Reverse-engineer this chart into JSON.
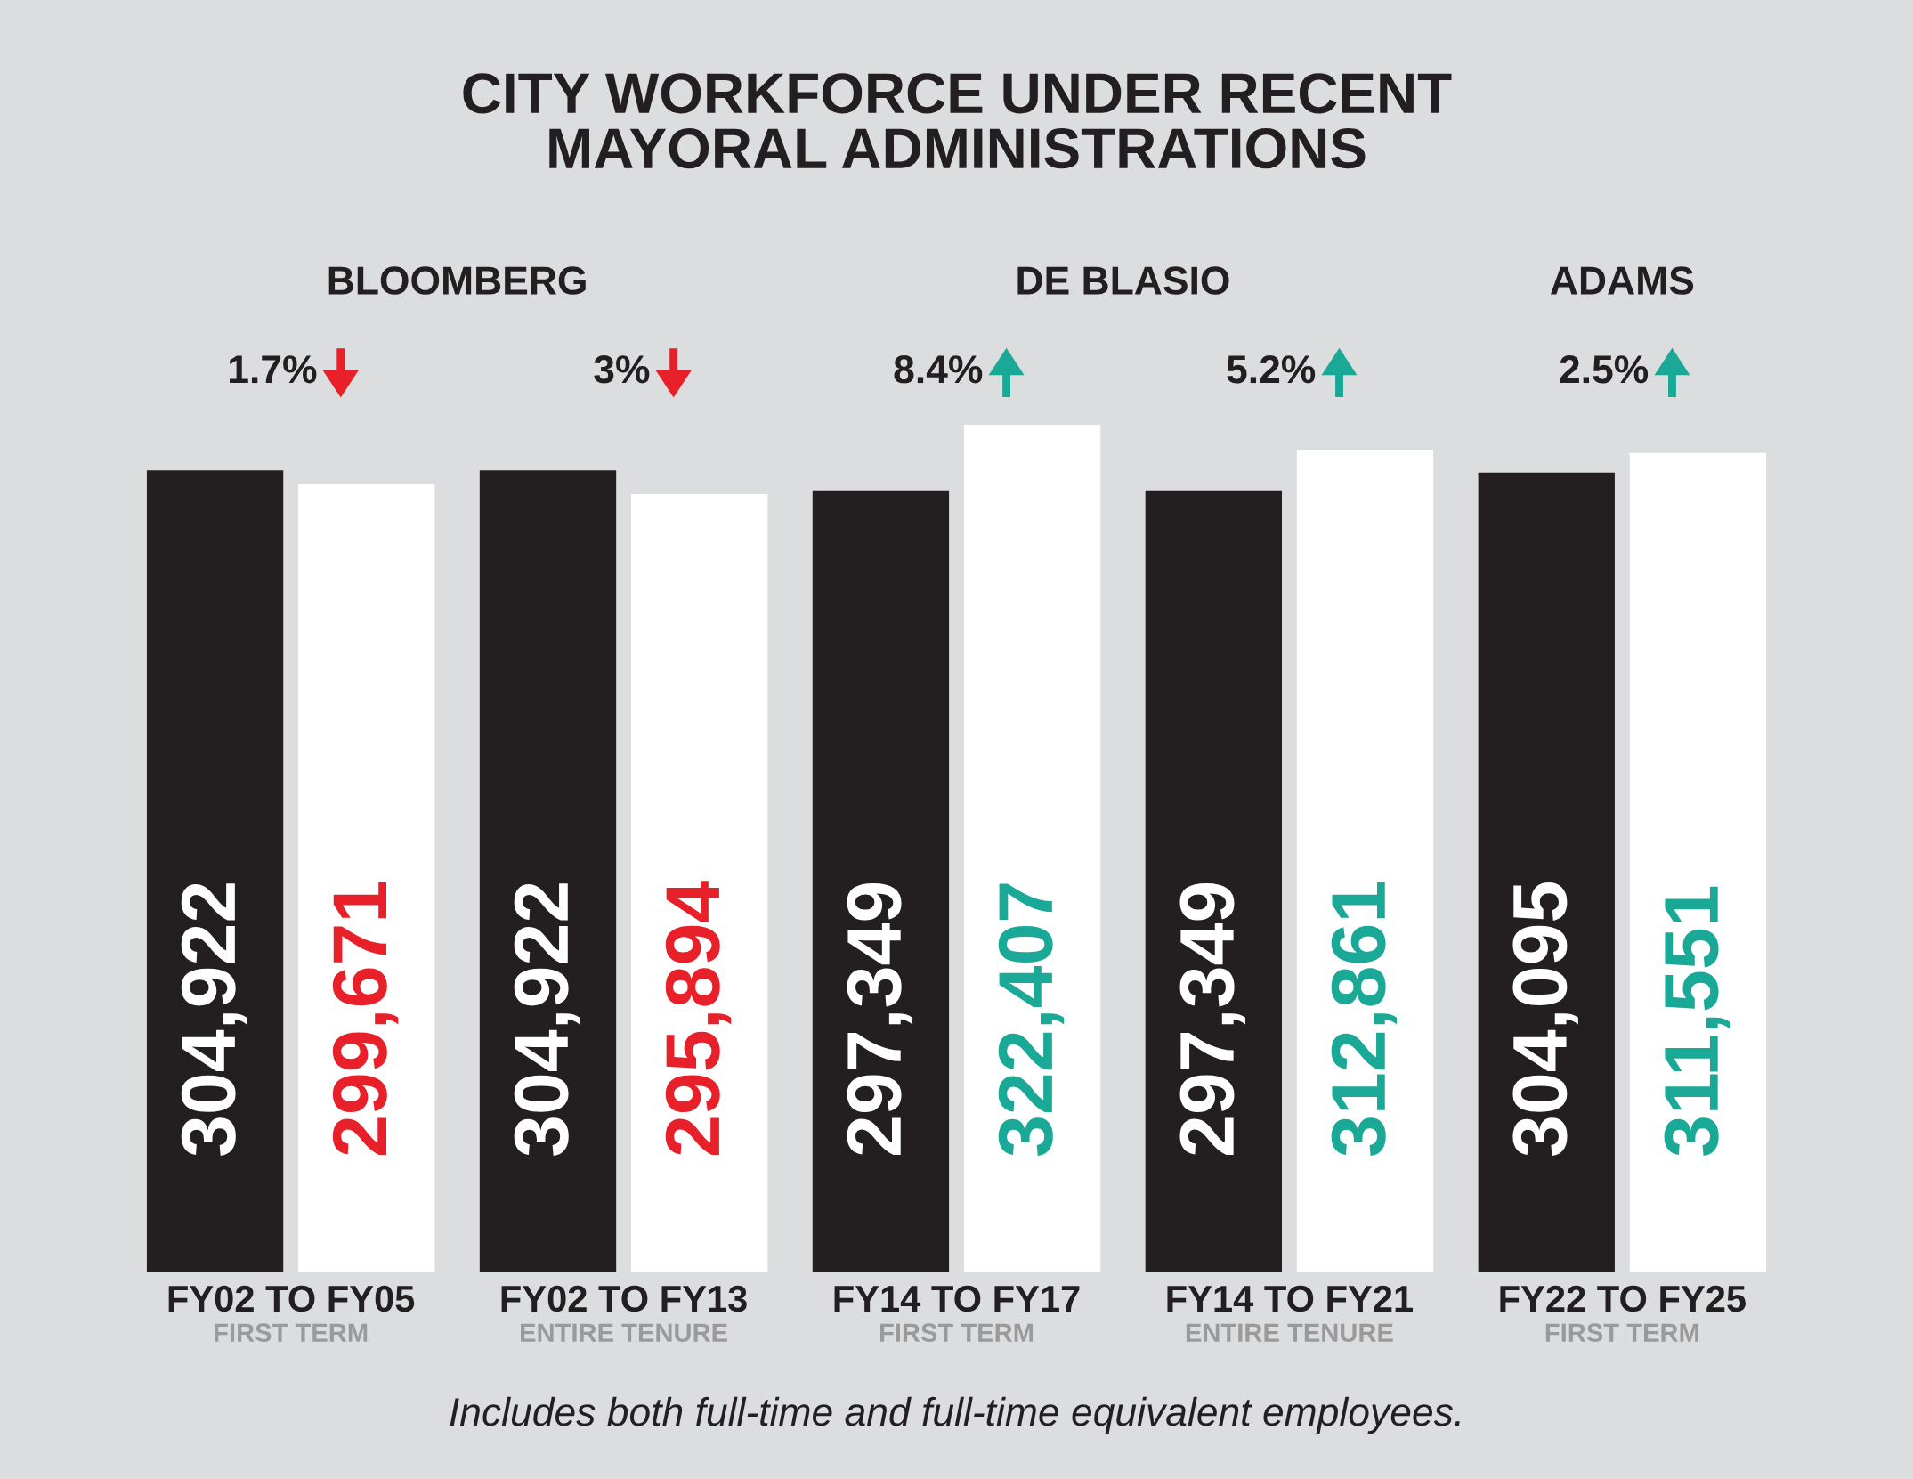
{
  "chart_data": {
    "type": "bar",
    "title": "CITY WORKFORCE UNDER RECENT\nMAYORAL ADMINISTRATIONS",
    "categories": [
      "FY02 TO FY05\nFIRST TERM",
      "FY02 TO FY13\nENTIRE TENURE",
      "FY14 TO FY17\nFIRST TERM",
      "FY14 TO FY21\nENTIRE TENURE",
      "FY22 TO FY25\nFIRST TERM"
    ],
    "series": [
      {
        "color": "#231f20",
        "values": [
          304922,
          304922,
          297349,
          297349,
          304095
        ],
        "value_labels": [
          "304,922",
          "304,922",
          "297,349",
          "297,349",
          "304,095"
        ]
      },
      {
        "color": "#ffffff",
        "values": [
          299671,
          295894,
          322407,
          312861,
          311551
        ],
        "value_labels": [
          "299,671",
          "295,894",
          "322,407",
          "312,861",
          "311,551"
        ]
      }
    ],
    "annotations": [
      "BLOOMBERG",
      "DE BLASIO",
      "ADAMS",
      "1.7%",
      "3%",
      "8.4%",
      "5.2%",
      "2.5%",
      "Includes both full-time and full-time equivalent employees."
    ]
  }
}
